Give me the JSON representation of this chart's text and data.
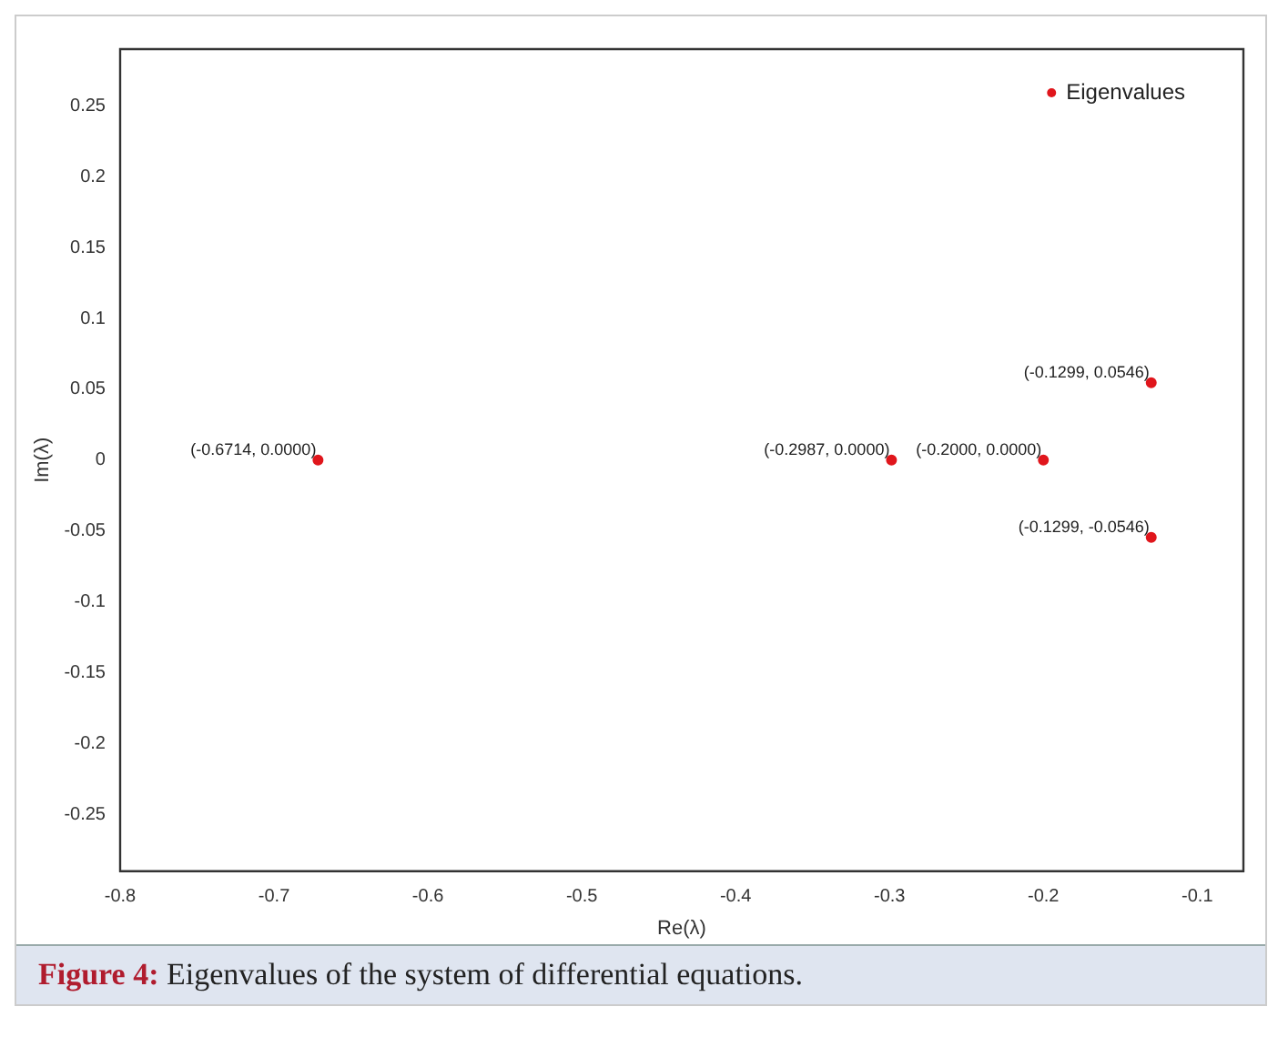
{
  "chart_data": {
    "type": "scatter",
    "xlabel": "Re(λ)",
    "ylabel": "Im(λ)",
    "series": [
      {
        "name": "Eigenvalues",
        "color": "#e0161c",
        "x": [
          -0.6714,
          -0.2987,
          -0.2,
          -0.1299,
          -0.1299
        ],
        "values": [
          0,
          0,
          0,
          0.0546,
          -0.0546
        ]
      }
    ],
    "xlim": [
      -0.8,
      -0.07
    ],
    "ylim": [
      -0.29,
      0.29
    ],
    "xticks": [
      -0.8,
      -0.7,
      -0.6,
      -0.5,
      -0.4,
      -0.3,
      -0.2,
      -0.1
    ],
    "yticks": [
      -0.25,
      -0.2,
      -0.15,
      -0.1,
      -0.05,
      0,
      0.05,
      0.1,
      0.15,
      0.2,
      0.25
    ],
    "grid": false,
    "legend": "top right",
    "marker": "circle",
    "annotations": [
      {
        "text": "(-0.6714, 0.0000)",
        "x": -0.6714,
        "y": 0
      },
      {
        "text": "(-0.2987, 0.0000)",
        "x": -0.2987,
        "y": 0
      },
      {
        "text": "(-0.2000, 0.0000)",
        "x": -0.2,
        "y": 0
      },
      {
        "text": "(-0.1299, 0.0546)",
        "x": -0.1299,
        "y": 0.0546
      },
      {
        "text": "(-0.1299, -0.0546)",
        "x": -0.1299,
        "y": -0.0546
      },
      "Figure 4: Eigenvalues of the system of differential equations."
    ]
  }
}
